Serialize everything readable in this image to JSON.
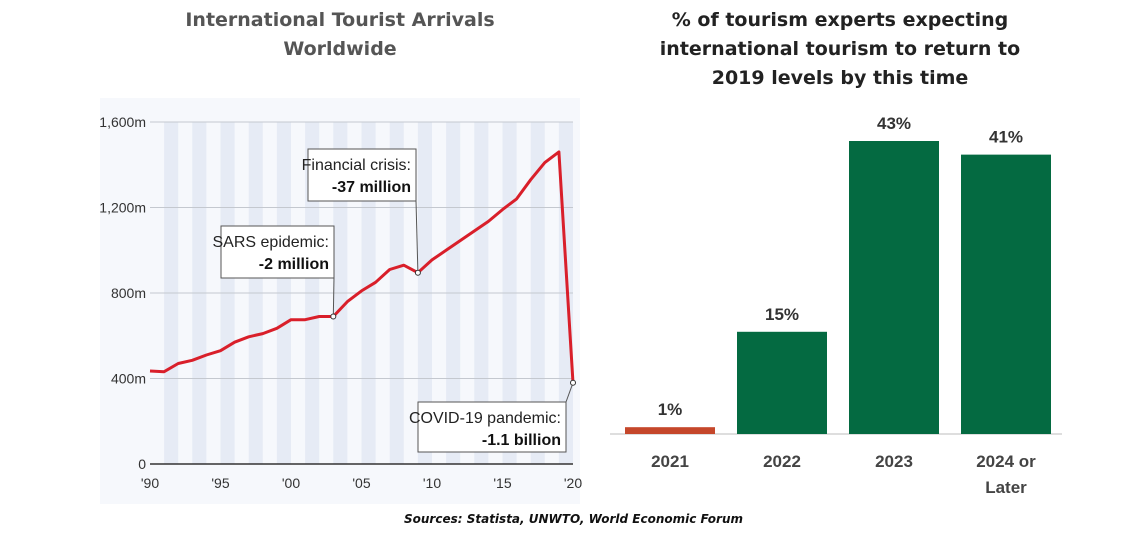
{
  "source": "Sources: Statista, UNWTO, World Economic Forum",
  "chart_data": [
    {
      "type": "line",
      "title": "International Tourist Arrivals Worldwide",
      "title_lines": [
        "International Tourist Arrivals",
        "Worldwide"
      ],
      "ylim": [
        0,
        1600
      ],
      "y_ticks": [
        0,
        400,
        800,
        1200,
        1600
      ],
      "y_tick_labels": [
        "0",
        "400m",
        "800m",
        "1,200m",
        "1,600m"
      ],
      "xlim": [
        1990,
        2020
      ],
      "x_ticks": [
        1990,
        1995,
        2000,
        2005,
        2010,
        2015,
        2020
      ],
      "x_tick_labels": [
        "'90",
        "'95",
        "'00",
        "'05",
        "'10",
        "'15",
        "'20"
      ],
      "line_color": "#d91f2a",
      "grid": true,
      "series": [
        {
          "x": [
            1990,
            1991,
            1992,
            1993,
            1994,
            1995,
            1996,
            1997,
            1998,
            1999,
            2000,
            2001,
            2002,
            2003,
            2004,
            2005,
            2006,
            2007,
            2008,
            2009,
            2010,
            2011,
            2012,
            2013,
            2014,
            2015,
            2016,
            2017,
            2018,
            2019,
            2020
          ],
          "y": [
            435,
            432,
            470,
            485,
            510,
            530,
            570,
            595,
            610,
            635,
            675,
            675,
            690,
            690,
            760,
            810,
            850,
            910,
            930,
            895,
            955,
            1000,
            1045,
            1090,
            1135,
            1190,
            1240,
            1330,
            1410,
            1460,
            380
          ]
        }
      ],
      "annotations": [
        {
          "x": 2003,
          "y": 690,
          "label": "SARS epidemic:",
          "value": "-2 million"
        },
        {
          "x": 2009,
          "y": 895,
          "label": "Financial crisis:",
          "value": "-37 million"
        },
        {
          "x": 2020,
          "y": 380,
          "label": "COVID-19 pandemic:",
          "value": "-1.1 billion"
        }
      ]
    },
    {
      "type": "bar",
      "title": "% of tourism experts expecting international tourism to return to 2019 levels by this time",
      "title_lines": [
        "% of tourism experts expecting",
        "international tourism to return to",
        "2019 levels by this time"
      ],
      "categories": [
        "2021",
        "2022",
        "2023",
        "2024 or Later"
      ],
      "category_lines": [
        [
          "2021"
        ],
        [
          "2022"
        ],
        [
          "2023"
        ],
        [
          "2024 or",
          "Later"
        ]
      ],
      "values": [
        1,
        15,
        43,
        41
      ],
      "value_labels": [
        "1%",
        "15%",
        "43%",
        "41%"
      ],
      "bar_colors": [
        "#c5472b",
        "#046a41",
        "#046a41",
        "#046a41"
      ],
      "ylim": [
        0,
        43
      ]
    }
  ]
}
